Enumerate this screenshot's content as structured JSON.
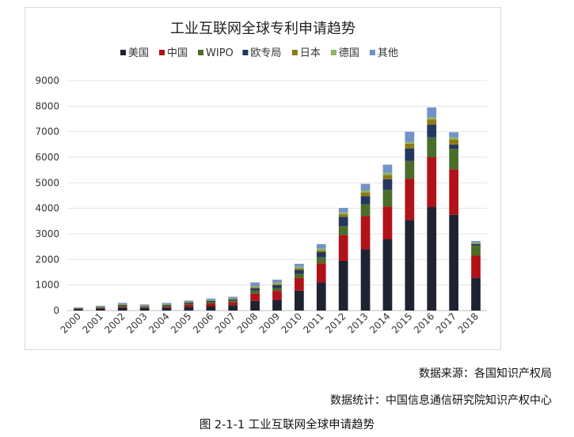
{
  "chart_data": {
    "type": "bar",
    "stacked": true,
    "title": "工业互联网全球专利申请趋势",
    "xlabel": "",
    "ylabel": "",
    "ylim": [
      0,
      9000
    ],
    "yticks": [
      0,
      1000,
      2000,
      3000,
      4000,
      5000,
      6000,
      7000,
      8000,
      9000
    ],
    "ytick_labels": [
      "0",
      "1000",
      "2000",
      "3000",
      "4000",
      "5000",
      "6000",
      "7000",
      "8000",
      "9000"
    ],
    "grid": true,
    "legend_position": "top",
    "categories": [
      "2000",
      "2001",
      "2002",
      "2003",
      "2004",
      "2005",
      "2006",
      "2007",
      "2008",
      "2009",
      "2010",
      "2011",
      "2012",
      "2013",
      "2014",
      "2015",
      "2016",
      "2017",
      "2018"
    ],
    "series": [
      {
        "name": "美国",
        "color": "#1f2230",
        "values": [
          60,
          80,
          110,
          100,
          110,
          150,
          170,
          210,
          380,
          420,
          780,
          1100,
          1950,
          2400,
          2800,
          3550,
          4050,
          3750,
          1280
        ]
      },
      {
        "name": "中国",
        "color": "#b01218",
        "values": [
          10,
          20,
          40,
          30,
          40,
          80,
          110,
          120,
          280,
          350,
          500,
          750,
          1000,
          1300,
          1270,
          1600,
          1950,
          1780,
          870
        ]
      },
      {
        "name": "WIPO",
        "color": "#4a6d2a",
        "values": [
          15,
          20,
          40,
          30,
          40,
          50,
          60,
          70,
          120,
          110,
          150,
          230,
          350,
          450,
          650,
          700,
          780,
          800,
          400
        ]
      },
      {
        "name": "欧专局",
        "color": "#24375e",
        "values": [
          10,
          20,
          30,
          20,
          30,
          30,
          40,
          40,
          90,
          110,
          160,
          210,
          370,
          330,
          420,
          500,
          500,
          170,
          50
        ]
      },
      {
        "name": "日本",
        "color": "#8c7b14",
        "values": [
          5,
          10,
          20,
          10,
          20,
          20,
          20,
          20,
          50,
          50,
          70,
          70,
          100,
          150,
          170,
          180,
          200,
          200,
          30
        ]
      },
      {
        "name": "德国",
        "color": "#8fb567",
        "values": [
          5,
          10,
          10,
          10,
          10,
          10,
          10,
          20,
          30,
          40,
          50,
          60,
          70,
          70,
          80,
          70,
          80,
          80,
          20
        ]
      },
      {
        "name": "其他",
        "color": "#7193c5",
        "values": [
          20,
          30,
          50,
          40,
          50,
          50,
          60,
          60,
          150,
          130,
          120,
          180,
          180,
          260,
          320,
          400,
          390,
          200,
          70
        ]
      }
    ]
  },
  "captions": {
    "source": "数据来源：各国知识产权局",
    "statistics": "数据统计：中国信息通信研究院知识产权中心",
    "figure": "图 2-1-1 工业互联网全球申请趋势"
  }
}
